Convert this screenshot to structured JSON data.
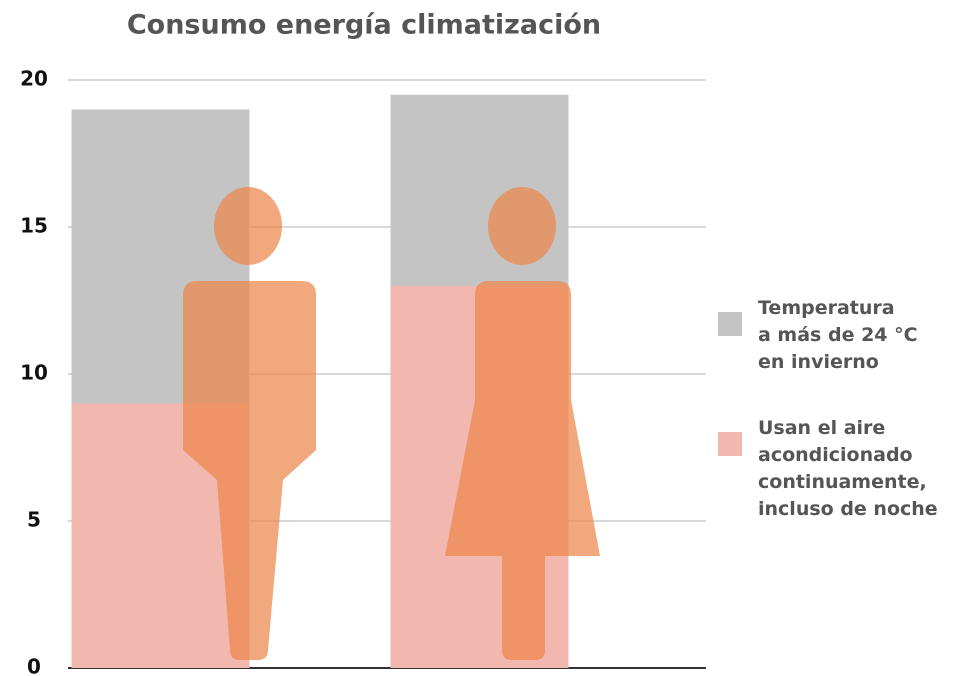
{
  "chart_data": {
    "type": "bar",
    "title": "Consumo energía climatización",
    "categories": [
      null,
      null
    ],
    "series": [
      {
        "name": "Temperatura\na más de 24 °C\nen invierno",
        "color": "#c4c4c4",
        "values": [
          19,
          19.5
        ]
      },
      {
        "name": "Usan el aire\nacondicionado\ncontinuamente,\nincluso de noche",
        "color": "#f2b8b0",
        "values": [
          9,
          13
        ]
      }
    ],
    "ylim": [
      0,
      20
    ],
    "yticks": [
      0,
      5,
      10,
      15,
      20
    ],
    "grid": true,
    "legend": "right"
  }
}
